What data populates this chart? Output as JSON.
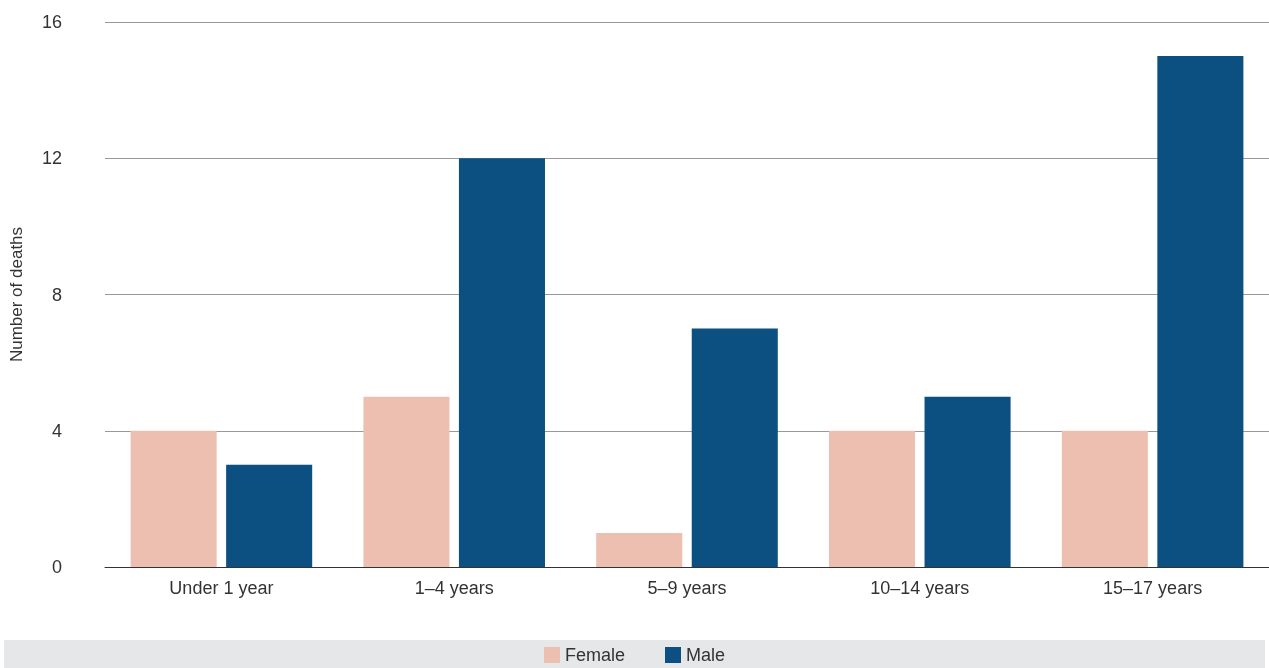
{
  "chart_data": {
    "type": "bar",
    "ylabel": "Number of deaths",
    "categories": [
      "Under 1 year",
      "1–4 years",
      "5–9 years",
      "10–14 years",
      "15–17 years"
    ],
    "series": [
      {
        "name": "Female",
        "color": "#ecbfb0",
        "values": [
          4,
          5,
          1,
          4,
          4
        ]
      },
      {
        "name": "Male",
        "color": "#0b5080",
        "values": [
          3,
          12,
          7,
          5,
          15
        ]
      }
    ],
    "ylim": [
      0,
      16
    ],
    "yticks": [
      0,
      4,
      8,
      12,
      16
    ],
    "grid": "y",
    "legend": "bottom"
  }
}
